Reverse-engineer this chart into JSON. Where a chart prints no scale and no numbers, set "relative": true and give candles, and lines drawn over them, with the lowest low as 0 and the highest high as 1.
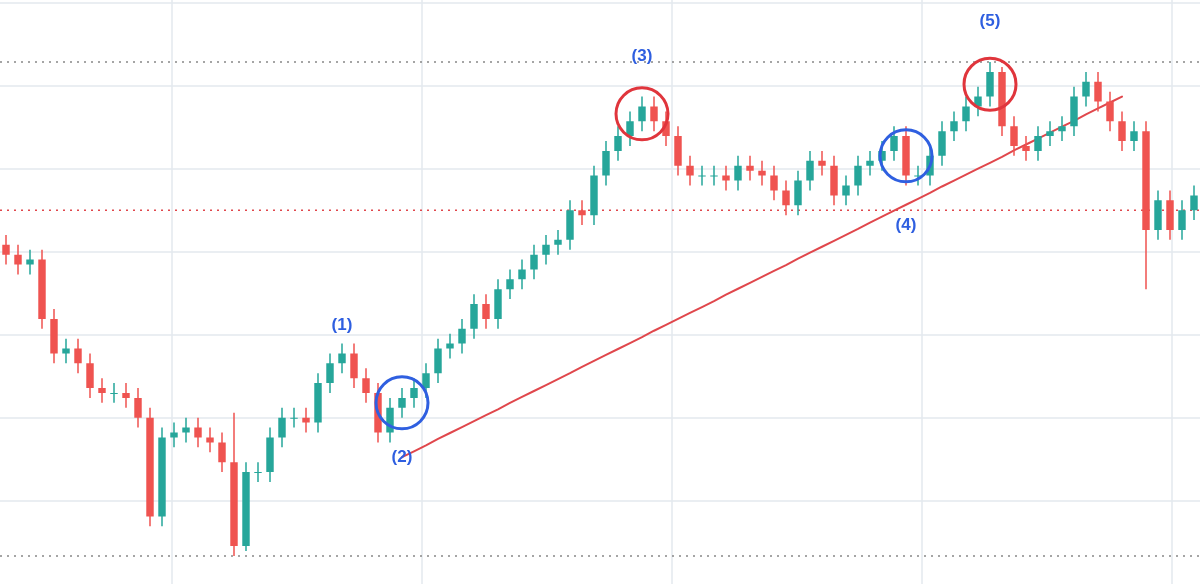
{
  "chart_data": {
    "type": "candlestick",
    "relative": true,
    "grid": true,
    "categories": [
      null,
      null,
      null,
      null,
      null,
      null,
      null,
      null,
      null,
      null,
      null,
      null,
      null,
      null,
      null,
      null,
      null,
      null,
      null,
      null,
      null,
      null,
      null,
      null,
      null,
      null,
      null,
      null,
      null,
      null,
      null,
      null,
      null,
      null,
      null,
      null,
      null,
      null,
      null,
      null,
      null,
      null,
      null,
      null,
      null,
      null,
      null,
      null,
      null,
      null,
      null,
      null,
      null,
      null,
      null,
      null,
      null,
      null,
      null,
      null,
      null,
      null,
      null,
      null,
      null,
      null,
      null,
      null,
      null,
      null,
      null,
      null,
      null,
      null,
      null,
      null,
      null,
      null,
      null,
      null,
      null,
      null,
      null,
      null,
      null,
      null,
      null,
      null,
      null,
      null,
      null,
      null,
      null,
      null,
      null,
      null,
      null,
      null,
      null,
      null
    ],
    "ohlc": [
      [
        0.63,
        0.65,
        0.59,
        0.61
      ],
      [
        0.61,
        0.63,
        0.57,
        0.59
      ],
      [
        0.59,
        0.62,
        0.57,
        0.6
      ],
      [
        0.6,
        0.62,
        0.46,
        0.48
      ],
      [
        0.48,
        0.5,
        0.39,
        0.41
      ],
      [
        0.41,
        0.44,
        0.39,
        0.42
      ],
      [
        0.42,
        0.44,
        0.37,
        0.39
      ],
      [
        0.39,
        0.41,
        0.32,
        0.34
      ],
      [
        0.34,
        0.36,
        0.31,
        0.33
      ],
      [
        0.33,
        0.35,
        0.31,
        0.33
      ],
      [
        0.33,
        0.35,
        0.3,
        0.32
      ],
      [
        0.32,
        0.34,
        0.26,
        0.28
      ],
      [
        0.28,
        0.3,
        0.06,
        0.08
      ],
      [
        0.08,
        0.26,
        0.06,
        0.24
      ],
      [
        0.24,
        0.27,
        0.22,
        0.25
      ],
      [
        0.25,
        0.28,
        0.23,
        0.26
      ],
      [
        0.26,
        0.28,
        0.22,
        0.24
      ],
      [
        0.24,
        0.26,
        0.21,
        0.23
      ],
      [
        0.23,
        0.25,
        0.17,
        0.19
      ],
      [
        0.19,
        0.29,
        0,
        0.02
      ],
      [
        0.02,
        0.19,
        0.01,
        0.17
      ],
      [
        0.17,
        0.19,
        0.15,
        0.17
      ],
      [
        0.17,
        0.26,
        0.15,
        0.24
      ],
      [
        0.24,
        0.3,
        0.22,
        0.28
      ],
      [
        0.28,
        0.3,
        0.26,
        0.28
      ],
      [
        0.28,
        0.3,
        0.25,
        0.27
      ],
      [
        0.27,
        0.37,
        0.25,
        0.35
      ],
      [
        0.35,
        0.41,
        0.33,
        0.39
      ],
      [
        0.39,
        0.43,
        0.37,
        0.41
      ],
      [
        0.41,
        0.43,
        0.34,
        0.36
      ],
      [
        0.36,
        0.38,
        0.31,
        0.33
      ],
      [
        0.33,
        0.35,
        0.23,
        0.25
      ],
      [
        0.25,
        0.32,
        0.23,
        0.3
      ],
      [
        0.3,
        0.34,
        0.28,
        0.32
      ],
      [
        0.32,
        0.36,
        0.3,
        0.34
      ],
      [
        0.34,
        0.39,
        0.32,
        0.37
      ],
      [
        0.37,
        0.44,
        0.35,
        0.42
      ],
      [
        0.42,
        0.45,
        0.4,
        0.43
      ],
      [
        0.43,
        0.48,
        0.41,
        0.46
      ],
      [
        0.46,
        0.53,
        0.44,
        0.51
      ],
      [
        0.51,
        0.53,
        0.46,
        0.48
      ],
      [
        0.48,
        0.56,
        0.46,
        0.54
      ],
      [
        0.54,
        0.58,
        0.52,
        0.56
      ],
      [
        0.56,
        0.6,
        0.54,
        0.58
      ],
      [
        0.58,
        0.63,
        0.56,
        0.61
      ],
      [
        0.61,
        0.65,
        0.59,
        0.63
      ],
      [
        0.63,
        0.66,
        0.61,
        0.64
      ],
      [
        0.64,
        0.72,
        0.62,
        0.7
      ],
      [
        0.7,
        0.72,
        0.67,
        0.69
      ],
      [
        0.69,
        0.79,
        0.67,
        0.77
      ],
      [
        0.77,
        0.84,
        0.75,
        0.82
      ],
      [
        0.82,
        0.87,
        0.8,
        0.85
      ],
      [
        0.85,
        0.9,
        0.83,
        0.88
      ],
      [
        0.88,
        0.93,
        0.86,
        0.91
      ],
      [
        0.91,
        0.93,
        0.86,
        0.88
      ],
      [
        0.88,
        0.9,
        0.83,
        0.85
      ],
      [
        0.85,
        0.87,
        0.77,
        0.79
      ],
      [
        0.79,
        0.81,
        0.75,
        0.77
      ],
      [
        0.77,
        0.79,
        0.75,
        0.77
      ],
      [
        0.77,
        0.79,
        0.75,
        0.77
      ],
      [
        0.77,
        0.79,
        0.74,
        0.76
      ],
      [
        0.76,
        0.81,
        0.74,
        0.79
      ],
      [
        0.79,
        0.81,
        0.76,
        0.78
      ],
      [
        0.78,
        0.8,
        0.75,
        0.77
      ],
      [
        0.77,
        0.79,
        0.72,
        0.74
      ],
      [
        0.74,
        0.76,
        0.69,
        0.71
      ],
      [
        0.71,
        0.78,
        0.69,
        0.76
      ],
      [
        0.76,
        0.82,
        0.74,
        0.8
      ],
      [
        0.8,
        0.82,
        0.77,
        0.79
      ],
      [
        0.79,
        0.81,
        0.71,
        0.73
      ],
      [
        0.73,
        0.77,
        0.71,
        0.75
      ],
      [
        0.75,
        0.81,
        0.73,
        0.79
      ],
      [
        0.79,
        0.82,
        0.77,
        0.8
      ],
      [
        0.8,
        0.84,
        0.78,
        0.82
      ],
      [
        0.82,
        0.87,
        0.8,
        0.85
      ],
      [
        0.85,
        0.87,
        0.75,
        0.77
      ],
      [
        0.77,
        0.79,
        0.75,
        0.77
      ],
      [
        0.77,
        0.83,
        0.75,
        0.81
      ],
      [
        0.81,
        0.88,
        0.79,
        0.86
      ],
      [
        0.86,
        0.9,
        0.84,
        0.88
      ],
      [
        0.88,
        0.93,
        0.86,
        0.91
      ],
      [
        0.91,
        0.95,
        0.89,
        0.93
      ],
      [
        0.93,
        1,
        0.91,
        0.98
      ],
      [
        0.98,
        0.99,
        0.85,
        0.87
      ],
      [
        0.87,
        0.89,
        0.81,
        0.83
      ],
      [
        0.83,
        0.85,
        0.8,
        0.82
      ],
      [
        0.82,
        0.87,
        0.8,
        0.85
      ],
      [
        0.85,
        0.88,
        0.83,
        0.86
      ],
      [
        0.86,
        0.89,
        0.84,
        0.87
      ],
      [
        0.87,
        0.95,
        0.85,
        0.93
      ],
      [
        0.93,
        0.98,
        0.91,
        0.96
      ],
      [
        0.96,
        0.98,
        0.9,
        0.92
      ],
      [
        0.92,
        0.94,
        0.86,
        0.88
      ],
      [
        0.88,
        0.9,
        0.82,
        0.84
      ],
      [
        0.84,
        0.88,
        0.82,
        0.86
      ],
      [
        0.86,
        0.88,
        0.54,
        0.66
      ],
      [
        0.66,
        0.74,
        0.64,
        0.72
      ],
      [
        0.72,
        0.74,
        0.64,
        0.66
      ],
      [
        0.66,
        0.72,
        0.64,
        0.7
      ],
      [
        0.7,
        0.75,
        0.68,
        0.73
      ]
    ],
    "colors": [
      "#ef5350",
      "#ef5350",
      "#26a69a",
      "#ef5350",
      "#ef5350",
      "#26a69a",
      "#ef5350",
      "#ef5350",
      "#ef5350",
      "#26a69a",
      "#ef5350",
      "#ef5350",
      "#ef5350",
      "#26a69a",
      "#26a69a",
      "#26a69a",
      "#ef5350",
      "#ef5350",
      "#ef5350",
      "#ef5350",
      "#26a69a",
      "#26a69a",
      "#26a69a",
      "#26a69a",
      "#26a69a",
      "#ef5350",
      "#26a69a",
      "#26a69a",
      "#26a69a",
      "#ef5350",
      "#ef5350",
      "#ef5350",
      "#26a69a",
      "#26a69a",
      "#26a69a",
      "#26a69a",
      "#26a69a",
      "#26a69a",
      "#26a69a",
      "#26a69a",
      "#ef5350",
      "#26a69a",
      "#26a69a",
      "#26a69a",
      "#26a69a",
      "#26a69a",
      "#26a69a",
      "#26a69a",
      "#ef5350",
      "#26a69a",
      "#26a69a",
      "#26a69a",
      "#26a69a",
      "#26a69a",
      "#ef5350",
      "#ef5350",
      "#ef5350",
      "#ef5350",
      "#26a69a",
      "#26a69a",
      "#ef5350",
      "#26a69a",
      "#ef5350",
      "#ef5350",
      "#ef5350",
      "#ef5350",
      "#26a69a",
      "#26a69a",
      "#ef5350",
      "#ef5350",
      "#26a69a",
      "#26a69a",
      "#26a69a",
      "#26a69a",
      "#26a69a",
      "#ef5350",
      "#26a69a",
      "#26a69a",
      "#26a69a",
      "#26a69a",
      "#26a69a",
      "#26a69a",
      "#26a69a",
      "#ef5350",
      "#ef5350",
      "#ef5350",
      "#26a69a",
      "#26a69a",
      "#26a69a",
      "#26a69a",
      "#26a69a",
      "#ef5350",
      "#ef5350",
      "#ef5350",
      "#26a69a",
      "#ef5350",
      "#26a69a",
      "#ef5350",
      "#26a69a",
      "#26a69a"
    ],
    "series": [
      {
        "type": "line",
        "color": "#e0474c",
        "values": [
          null,
          null,
          null,
          null,
          null,
          null,
          null,
          null,
          null,
          null,
          null,
          null,
          null,
          null,
          null,
          null,
          null,
          null,
          null,
          null,
          null,
          null,
          null,
          null,
          null,
          null,
          null,
          null,
          null,
          null,
          null,
          null,
          null,
          0.2,
          0.212,
          0.224,
          0.237,
          0.249,
          0.261,
          0.273,
          0.285,
          0.297,
          0.31,
          0.322,
          0.334,
          0.346,
          0.358,
          0.37,
          0.383,
          0.395,
          0.407,
          0.419,
          0.431,
          0.443,
          0.456,
          0.468,
          0.48,
          0.492,
          0.504,
          0.516,
          0.529,
          0.541,
          0.553,
          0.565,
          0.577,
          0.589,
          0.602,
          0.614,
          0.626,
          0.638,
          0.65,
          0.662,
          0.675,
          0.687,
          0.699,
          0.711,
          0.723,
          0.735,
          0.748,
          0.76,
          0.772,
          0.784,
          0.796,
          0.808,
          0.821,
          0.833,
          0.845,
          0.857,
          0.869,
          0.881,
          0.894,
          0.906,
          0.918,
          0.93,
          null,
          null,
          null,
          null,
          null,
          null
        ]
      }
    ],
    "ref_lines": [
      {
        "axis": "y",
        "value": 1,
        "color": "#888888",
        "line_style": "dotted"
      },
      {
        "axis": "y",
        "value": 0.7,
        "color": "#e0474c",
        "line_style": "dotted"
      },
      {
        "axis": "y",
        "value": 0,
        "color": "#888888",
        "line_style": "dotted"
      }
    ],
    "annotations": [
      "(1)",
      "(2)",
      "(3)",
      "(4)",
      "(5)"
    ]
  }
}
